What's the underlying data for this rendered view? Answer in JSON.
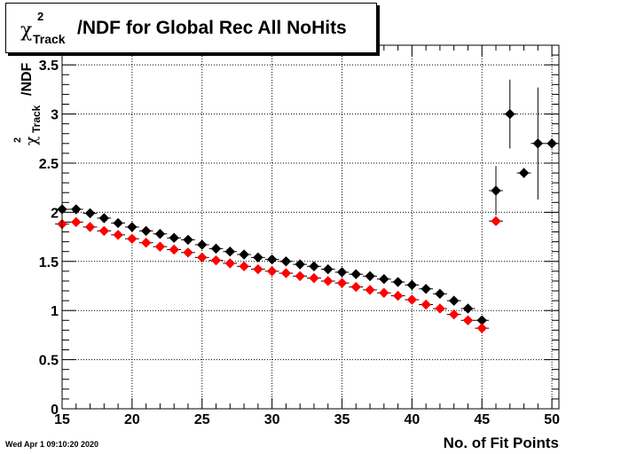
{
  "title": {
    "symbol": "χ",
    "superscript": "2",
    "subscript": "Track",
    "text": "/NDF for Global Rec All NoHits"
  },
  "datestamp": "Wed Apr  1 09:10:20 2020",
  "chart_data": {
    "type": "scatter",
    "xlabel": "No. of Fit Points",
    "ylabel": {
      "symbol": "χ",
      "superscript": "2",
      "subscript": "Track",
      "text": "/NDF"
    },
    "xlim": [
      15,
      50.5
    ],
    "ylim": [
      0,
      3.7
    ],
    "x_ticks": [
      15,
      20,
      25,
      30,
      35,
      40,
      45,
      50
    ],
    "x_tick_labels": [
      "15",
      "20",
      "25",
      "30",
      "35",
      "40",
      "45",
      "50"
    ],
    "y_ticks": [
      0,
      0.5,
      1,
      1.5,
      2,
      2.5,
      3,
      3.5
    ],
    "y_tick_labels": [
      "0",
      "0.5",
      "1",
      "1.5",
      "2",
      "2.5",
      "3",
      "3.5"
    ],
    "grid": true,
    "series": [
      {
        "color": "#000000",
        "x": [
          15,
          16,
          17,
          18,
          19,
          20,
          21,
          22,
          23,
          24,
          25,
          26,
          27,
          28,
          29,
          30,
          31,
          32,
          33,
          34,
          35,
          36,
          37,
          38,
          39,
          40,
          41,
          42,
          43,
          44,
          45,
          46,
          47,
          48,
          49,
          50
        ],
        "y": [
          2.03,
          2.03,
          1.99,
          1.94,
          1.89,
          1.85,
          1.81,
          1.78,
          1.74,
          1.72,
          1.67,
          1.63,
          1.6,
          1.57,
          1.54,
          1.52,
          1.5,
          1.47,
          1.45,
          1.42,
          1.39,
          1.37,
          1.35,
          1.32,
          1.29,
          1.26,
          1.22,
          1.17,
          1.1,
          1.02,
          0.9,
          2.22,
          3.0,
          2.4,
          2.7,
          2.7
        ],
        "yerr": [
          0.01,
          0.01,
          0.01,
          0.01,
          0.01,
          0.01,
          0.01,
          0.01,
          0.01,
          0.01,
          0.01,
          0.01,
          0.01,
          0.01,
          0.01,
          0.01,
          0.01,
          0.01,
          0.01,
          0.01,
          0.01,
          0.01,
          0.01,
          0.01,
          0.01,
          0.01,
          0.01,
          0.01,
          0.01,
          0.01,
          0.01,
          0.25,
          0.35,
          0.05,
          0.57,
          0.0
        ]
      },
      {
        "color": "#ff0000",
        "x": [
          15,
          16,
          17,
          18,
          19,
          20,
          21,
          22,
          23,
          24,
          25,
          26,
          27,
          28,
          29,
          30,
          31,
          32,
          33,
          34,
          35,
          36,
          37,
          38,
          39,
          40,
          41,
          42,
          43,
          44,
          45,
          46
        ],
        "y": [
          1.88,
          1.9,
          1.85,
          1.81,
          1.77,
          1.73,
          1.69,
          1.65,
          1.62,
          1.59,
          1.54,
          1.51,
          1.48,
          1.45,
          1.42,
          1.4,
          1.38,
          1.35,
          1.33,
          1.3,
          1.28,
          1.24,
          1.21,
          1.18,
          1.15,
          1.11,
          1.06,
          1.02,
          0.96,
          0.9,
          0.82,
          1.91
        ],
        "yerr": [
          0.01,
          0.01,
          0.01,
          0.01,
          0.01,
          0.01,
          0.01,
          0.01,
          0.01,
          0.01,
          0.01,
          0.01,
          0.01,
          0.01,
          0.01,
          0.01,
          0.01,
          0.01,
          0.01,
          0.01,
          0.01,
          0.01,
          0.01,
          0.01,
          0.01,
          0.01,
          0.01,
          0.01,
          0.01,
          0.01,
          0.01,
          0.01
        ]
      }
    ]
  }
}
